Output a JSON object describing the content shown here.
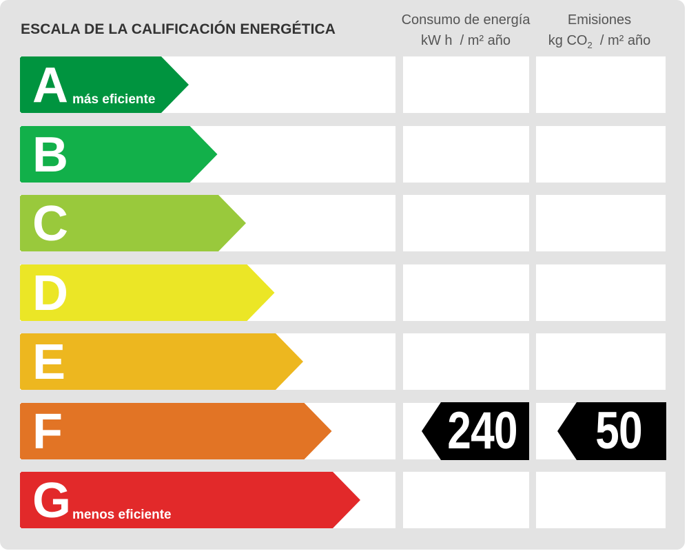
{
  "title": "ESCALA DE LA CALIFICACIÓN ENERGÉTICA",
  "columns": {
    "consumo": {
      "line1": "Consumo de energía",
      "line2": "kW h  / m² año"
    },
    "emisiones": {
      "line1": "Emisiones",
      "line2_pre": "kg CO",
      "line2_sub": "2",
      "line2_post": "  / m² año"
    }
  },
  "ratings": [
    {
      "letter": "A",
      "color": "#00943f",
      "note": "más eficiente"
    },
    {
      "letter": "B",
      "color": "#12b04a",
      "note": ""
    },
    {
      "letter": "C",
      "color": "#99c93c",
      "note": ""
    },
    {
      "letter": "D",
      "color": "#ebe626",
      "note": ""
    },
    {
      "letter": "E",
      "color": "#edb71f",
      "note": ""
    },
    {
      "letter": "F",
      "color": "#e27425",
      "note": ""
    },
    {
      "letter": "G",
      "color": "#e2292a",
      "note": "menos eficiente"
    }
  ],
  "current_rating": "F",
  "consumo_value": "240",
  "emisiones_value": "50"
}
